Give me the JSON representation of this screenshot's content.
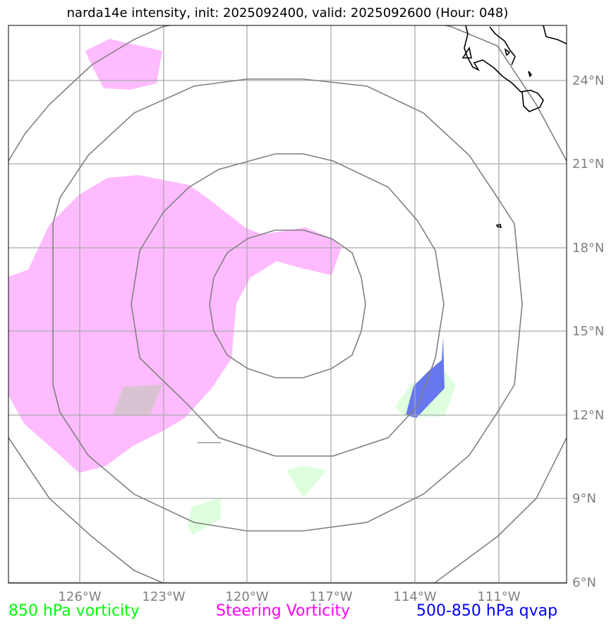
{
  "title": "narda14e intensity, init: 2025092400, valid: 2025092600 (Hour: 048)",
  "map": {
    "lon_range": [
      -128.5,
      -108.5
    ],
    "lat_range": [
      6,
      26
    ],
    "lon_ticks": [
      "126°W",
      "123°W",
      "120°W",
      "117°W",
      "114°W",
      "111°W"
    ],
    "lat_ticks": [
      "24°N",
      "21°N",
      "18°N",
      "15°N",
      "12°N",
      "9°N",
      "6°N"
    ],
    "range_ring_center": {
      "lon": -118.9,
      "lat": 16.0
    },
    "range_ring_count": 4
  },
  "legend": [
    {
      "label": "850 hPa vorticity",
      "color": "#00ff00"
    },
    {
      "label": "Steering Vorticity",
      "color": "#ff00ff"
    },
    {
      "label": "500-850 hPa qvap",
      "color": "#0000ff"
    }
  ],
  "colors": {
    "steering_fill": "#ffbbff",
    "vort850_fill": "#ddffdd",
    "qvap_fill": "#6677ee",
    "grid": "#aaaaaa",
    "ring": "#808080",
    "coast": "#000000"
  }
}
